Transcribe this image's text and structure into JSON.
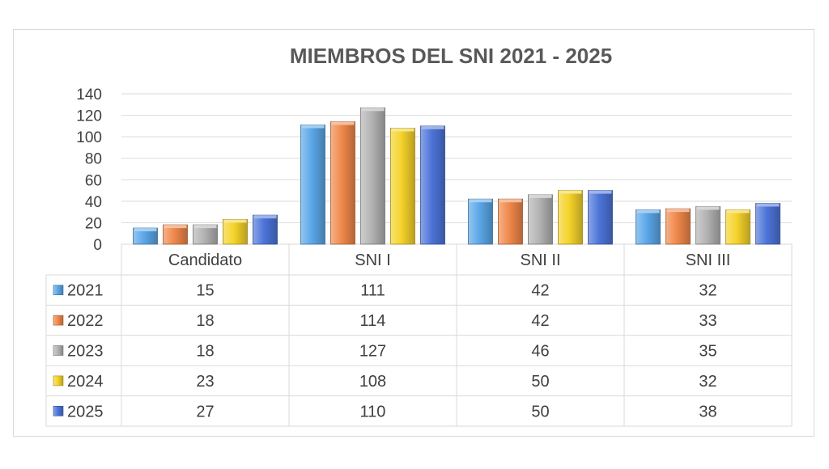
{
  "chart_data": {
    "type": "bar",
    "title": "MIEMBROS DEL SNI 2021 - 2025",
    "categories": [
      "Candidato",
      "SNI I",
      "SNI II",
      "SNI III"
    ],
    "ylim": [
      0,
      140
    ],
    "yticks": [
      0,
      20,
      40,
      60,
      80,
      100,
      120,
      140
    ],
    "grid": true,
    "legend": "data-table",
    "series": [
      {
        "name": "2021",
        "values": [
          15,
          111,
          42,
          32
        ],
        "color": "#5BA7E8"
      },
      {
        "name": "2022",
        "values": [
          18,
          114,
          42,
          33
        ],
        "color": "#F0884A"
      },
      {
        "name": "2023",
        "values": [
          18,
          127,
          46,
          35
        ],
        "color": "#B3B3B3"
      },
      {
        "name": "2024",
        "values": [
          23,
          108,
          50,
          32
        ],
        "color": "#F5D32A"
      },
      {
        "name": "2025",
        "values": [
          27,
          110,
          50,
          38
        ],
        "color": "#4C74D9"
      }
    ]
  }
}
